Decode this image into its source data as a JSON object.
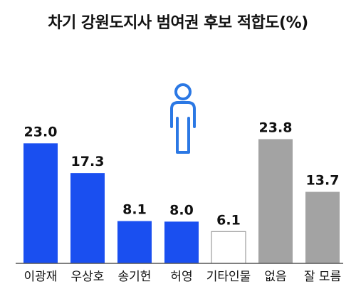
{
  "chart_data": {
    "type": "bar",
    "title": "차기 강원도지사 범여권 후보 적합도(%)",
    "xlabel": "",
    "ylabel": "",
    "ylim": [
      0,
      30
    ],
    "grid": false,
    "categories": [
      "이광재",
      "우상호",
      "송기헌",
      "허영",
      "기타인물",
      "없음",
      "잘 모름"
    ],
    "values": [
      23.0,
      17.3,
      8.1,
      8.0,
      6.1,
      23.8,
      13.7
    ],
    "value_labels": [
      "23.0",
      "17.3",
      "8.1",
      "8.0",
      "6.1",
      "23.8",
      "13.7"
    ],
    "bar_styles": [
      "candidate",
      "candidate",
      "candidate",
      "candidate",
      "other",
      "neutral",
      "neutral"
    ]
  },
  "colors": {
    "candidate": "#1a4ff0",
    "other": "#ffffff",
    "other_stroke": "#888888",
    "neutral": "#a3a3a3",
    "axis": "#555555",
    "icon": "#2b78e4"
  },
  "icon": "person-icon"
}
